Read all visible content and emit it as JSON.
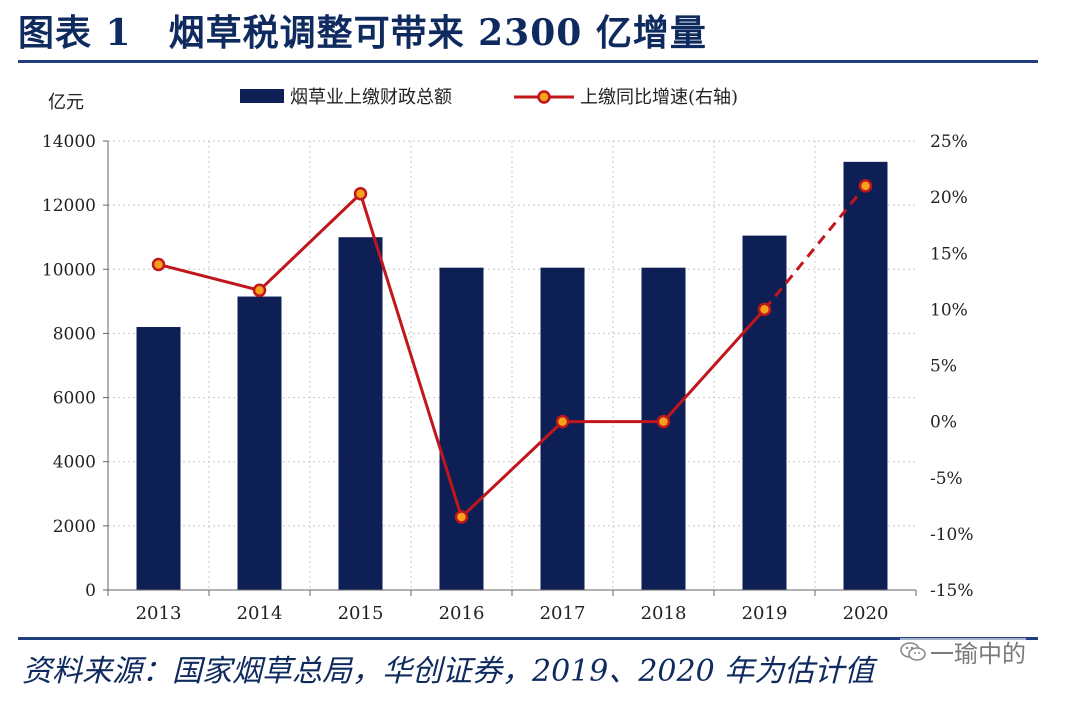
{
  "header": {
    "title": "图表 1　烟草税调整可带来 2300 亿增量"
  },
  "footer": {
    "source": "资料来源：国家烟草总局，华创证券，2019、2020 年为估计值"
  },
  "watermark": {
    "text": "一瑜中的",
    "icon": "wechat-icon"
  },
  "chart_data": {
    "type": "bar",
    "y_unit_label": "亿元",
    "categories": [
      "2013",
      "2014",
      "2015",
      "2016",
      "2017",
      "2018",
      "2019",
      "2020"
    ],
    "ylim": [
      0,
      14000
    ],
    "yticks": [
      "0",
      "2000",
      "4000",
      "6000",
      "8000",
      "10000",
      "12000",
      "14000"
    ],
    "y2lim": [
      -15,
      25
    ],
    "y2ticks": [
      "-15%",
      "-10%",
      "-5%",
      "0%",
      "5%",
      "10%",
      "15%",
      "20%",
      "25%"
    ],
    "grid": true,
    "legend_position": "top",
    "series": [
      {
        "name": "烟草业上缴财政总额",
        "type": "bar",
        "axis": "left",
        "color": "#0e1f55",
        "values": [
          8200,
          9150,
          11000,
          10050,
          10050,
          10050,
          11050,
          13350
        ]
      },
      {
        "name": "上缴同比增速(右轴)",
        "type": "line",
        "axis": "right",
        "color": "#c0161c",
        "marker_fill": "#f4a21c",
        "values": [
          14,
          11.7,
          20.3,
          -8.5,
          0,
          0,
          10,
          21
        ],
        "dashed_from_index": 6
      }
    ]
  }
}
